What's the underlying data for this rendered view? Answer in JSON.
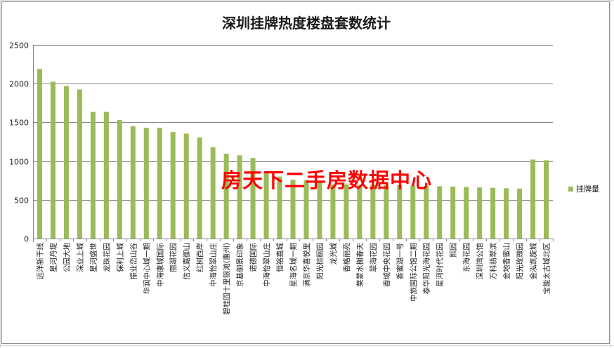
{
  "chart_data": {
    "type": "bar",
    "title": "深圳挂牌热度楼盘套数统计",
    "xlabel": "",
    "ylabel": "",
    "ylim": [
      0,
      2500
    ],
    "yticks": [
      0,
      500,
      1000,
      1500,
      2000,
      2500
    ],
    "grid": true,
    "legend_position": "right",
    "color": "#9bbb59",
    "categories": [
      "远洋新干线",
      "星河丹堤",
      "公园大地",
      "深业上城",
      "星河盛世",
      "龙珠花园",
      "保利上城",
      "振业峦山谷",
      "华润中心城一期",
      "中海康城国际",
      "丽湖花园",
      "信义嘉御山",
      "红树西岸",
      "中海怡翠山庄",
      "碧桂园十里银滩(惠州)",
      "京基御景印象",
      "诺德国际",
      "中海怡翠山庄",
      "恒裕嘉城",
      "星海名城一期",
      "满京华喜悦里",
      "阳光棕榈园",
      "龙光城",
      "香格丽苑",
      "莱蒙水榭春天",
      "翠海花园",
      "香域中央花园",
      "香蜜湖一号",
      "中旅国际公馆二期",
      "泰华阳光海花园",
      "星河时代花园",
      "熙园",
      "东海花园",
      "深圳湾公馆",
      "万科翡翠滨",
      "金地香蜜山",
      "阳光玫瑰园",
      "金泓凯旋城",
      "宝能太古城北区"
    ],
    "series": [
      {
        "name": "挂牌量",
        "values": [
          2190,
          2025,
          1970,
          1925,
          1635,
          1635,
          1530,
          1450,
          1430,
          1430,
          1375,
          1355,
          1305,
          1180,
          1095,
          1075,
          1040,
          860,
          800,
          760,
          755,
          745,
          700,
          700,
          695,
          695,
          690,
          690,
          685,
          680,
          675,
          670,
          665,
          660,
          655,
          650,
          645,
          1020,
          1010
        ]
      }
    ]
  },
  "legend": {
    "label": "挂牌量"
  },
  "watermark": {
    "text": "房天下二手房数据中心"
  }
}
